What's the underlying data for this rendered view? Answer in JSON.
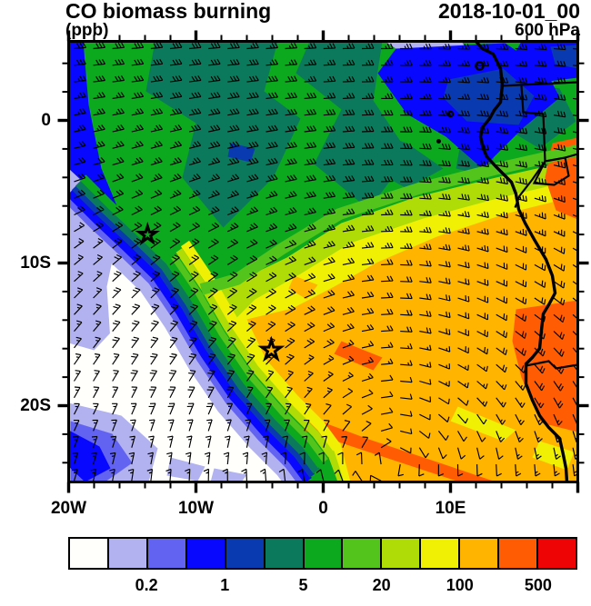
{
  "header": {
    "title": "CO biomass burning",
    "datetime": "2018-10-01_00",
    "units_label": "(ppb)",
    "level_label": "600 hPa"
  },
  "chart_data": {
    "type": "heatmap",
    "title": "CO biomass burning",
    "subtitle_left": "(ppb)",
    "subtitle_right": "600 hPa",
    "date_label": "2018-10-01_00",
    "description": "Filled contour map of CO from biomass burning (ppb) at 600 hPa over West Africa and the SE Atlantic, overlaid with wind barbs, coastline, country borders and two star markers",
    "x_axis": {
      "tick_labels": [
        "20W",
        "10W",
        "0",
        "10E"
      ],
      "range_deg_lon": [
        -20,
        20
      ],
      "major_tick_deg": 10,
      "minor_tick_deg": 2
    },
    "y_axis": {
      "tick_labels": [
        "0",
        "10S",
        "20S"
      ],
      "range_deg_lat": [
        5.5,
        -25.3
      ],
      "major_tick_deg": 10,
      "minor_tick_deg": 2
    },
    "colorbar": {
      "boundary_values": [
        0.1,
        0.2,
        0.5,
        1,
        2,
        5,
        10,
        20,
        50,
        100,
        200,
        500
      ],
      "shown_labels": [
        "0.2",
        "1",
        "5",
        "20",
        "100",
        "500"
      ],
      "shown_label_boundary_index": [
        2,
        4,
        6,
        8,
        10,
        12
      ],
      "colors": [
        "#FFFFFC",
        "#B2B2F0",
        "#6363F2",
        "#0808FF",
        "#0A3AB0",
        "#0B7A5C",
        "#0CA81E",
        "#52C41C",
        "#AFDC06",
        "#F0F004",
        "#FFB400",
        "#FF5C04",
        "#EE0404"
      ]
    },
    "map_features": {
      "star_markers": [
        {
          "x_frac": 0.155,
          "y_frac": 0.439
        },
        {
          "x_frac": 0.398,
          "y_frac": 0.701
        }
      ],
      "coastline": "West African coastline, Gulf of Guinea to ~25S",
      "island_count": 3,
      "wind": "wind barbs showing easterlies in the north and an anticyclonic gyre over the main CO plume"
    }
  }
}
